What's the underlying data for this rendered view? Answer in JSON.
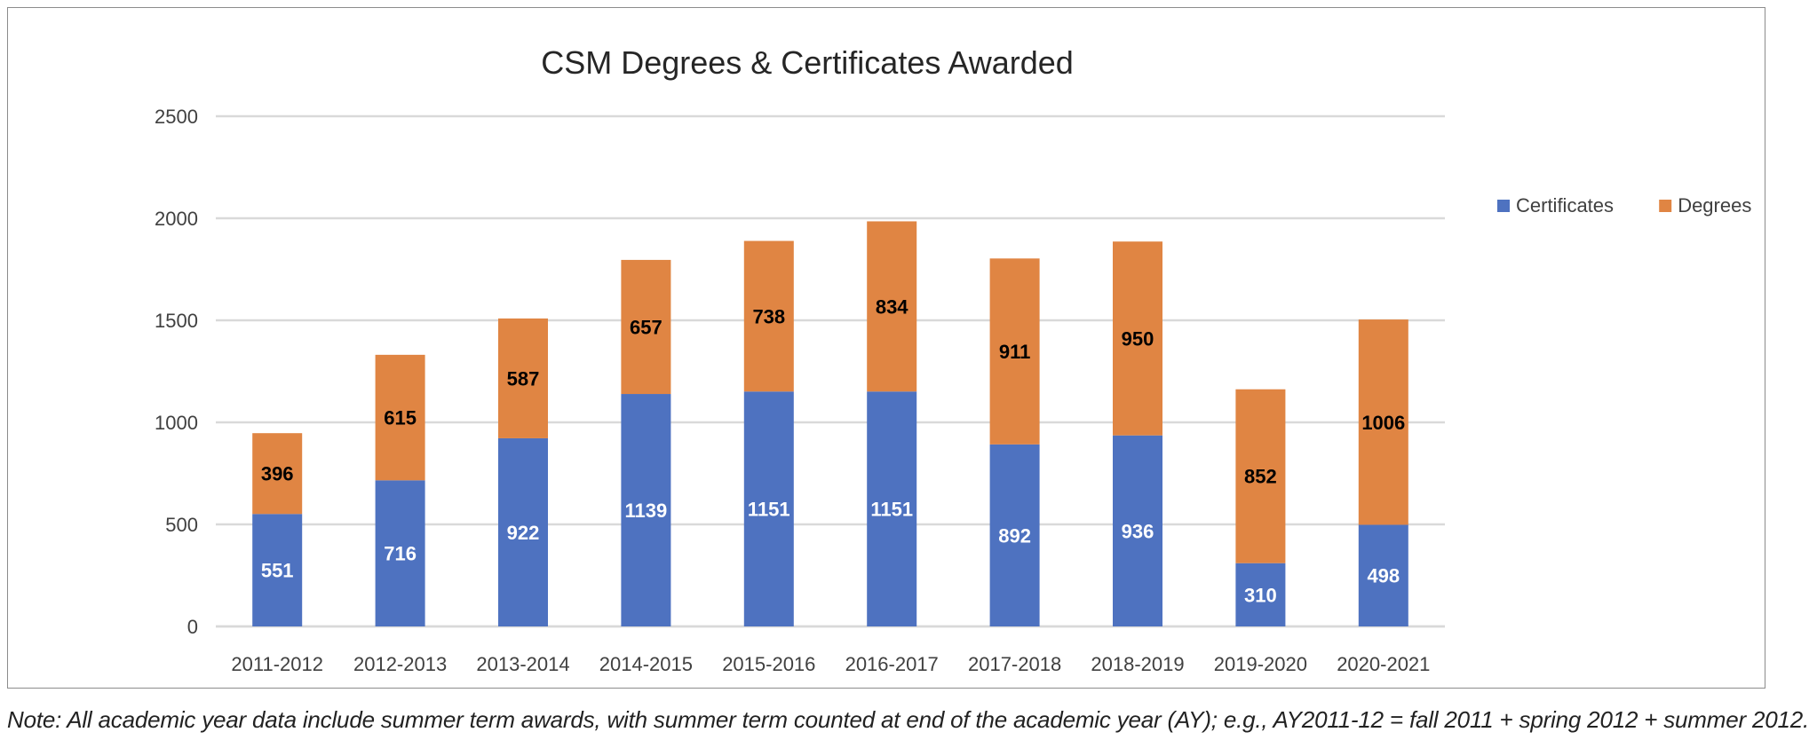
{
  "chart_data": {
    "type": "bar",
    "stacked": true,
    "title": "CSM Degrees & Certificates Awarded",
    "xlabel": "",
    "ylabel": "",
    "ylim": [
      0,
      2500
    ],
    "yticks": [
      0,
      500,
      1000,
      1500,
      2000,
      2500
    ],
    "grid": true,
    "legend_position": "right",
    "categories": [
      "2011-2012",
      "2012-2013",
      "2013-2014",
      "2014-2015",
      "2015-2016",
      "2016-2017",
      "2017-2018",
      "2018-2019",
      "2019-2020",
      "2020-2021"
    ],
    "series": [
      {
        "name": "Certificates",
        "color": "#4e72c0",
        "label_color": "#ffffff",
        "values": [
          551,
          716,
          922,
          1139,
          1151,
          1151,
          892,
          936,
          310,
          498
        ]
      },
      {
        "name": "Degrees",
        "color": "#e08543",
        "label_color": "#000000",
        "values": [
          396,
          615,
          587,
          657,
          738,
          834,
          911,
          950,
          852,
          1006
        ]
      }
    ]
  },
  "footnote": "Note: All academic year data include summer term awards, with summer term counted at end of the academic year (AY); e.g., AY2011-12 = fall 2011 + spring 2012 + summer 2012."
}
